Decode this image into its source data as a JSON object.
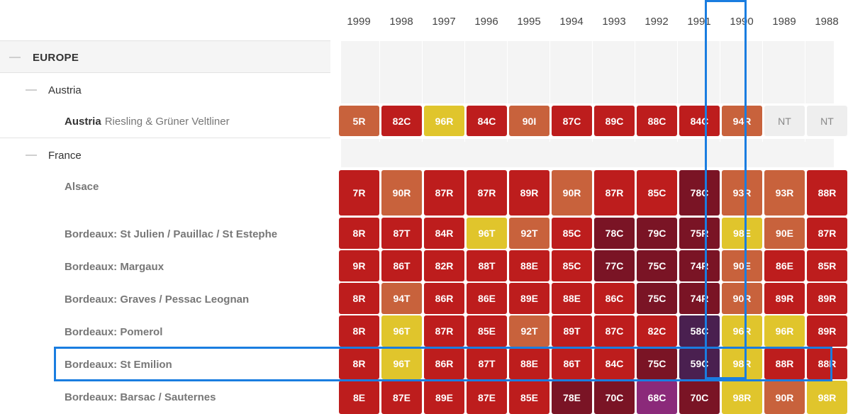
{
  "years": [
    "1999",
    "1998",
    "1997",
    "1996",
    "1995",
    "1994",
    "1993",
    "1992",
    "1991",
    "1990",
    "1989",
    "1988"
  ],
  "highlight": {
    "column_year": "1990",
    "row_label": "Bordeaux: St Emilion",
    "color": "#1a7de0"
  },
  "region": {
    "label": "EUROPE"
  },
  "countries": [
    {
      "label": "Austria"
    },
    {
      "label": "France"
    }
  ],
  "rows": [
    {
      "name": "Austria",
      "sub": "Riesling & Grüner Veltliner",
      "cells": [
        [
          "5R",
          "#c8623c"
        ],
        [
          "82C",
          "#bd1d1d"
        ],
        [
          "96R",
          "#e0c52c"
        ],
        [
          "84C",
          "#bd1d1d"
        ],
        [
          "90I",
          "#c8623c"
        ],
        [
          "87C",
          "#bd1d1d"
        ],
        [
          "89C",
          "#bd1d1d"
        ],
        [
          "88C",
          "#bd1d1d"
        ],
        [
          "84C",
          "#bd1d1d"
        ],
        [
          "94R",
          "#c8623c"
        ],
        [
          "NT",
          "#eeeeee"
        ],
        [
          "NT",
          "#eeeeee"
        ]
      ]
    },
    {
      "name": "Alsace",
      "sub": "",
      "cells": [
        [
          "7R",
          "#bd1d1d"
        ],
        [
          "90R",
          "#c8623c"
        ],
        [
          "87R",
          "#bd1d1d"
        ],
        [
          "87R",
          "#bd1d1d"
        ],
        [
          "89R",
          "#bd1d1d"
        ],
        [
          "90R",
          "#c8623c"
        ],
        [
          "87R",
          "#bd1d1d"
        ],
        [
          "85C",
          "#bd1d1d"
        ],
        [
          "78C",
          "#7a1425"
        ],
        [
          "93R",
          "#c8623c"
        ],
        [
          "93R",
          "#c8623c"
        ],
        [
          "88R",
          "#bd1d1d"
        ]
      ]
    },
    {
      "name": "Bordeaux: St Julien / Pauillac / St Estephe",
      "sub": "",
      "cells": [
        [
          "8R",
          "#bd1d1d"
        ],
        [
          "87T",
          "#bd1d1d"
        ],
        [
          "84R",
          "#bd1d1d"
        ],
        [
          "96T",
          "#e0c52c"
        ],
        [
          "92T",
          "#c8623c"
        ],
        [
          "85C",
          "#bd1d1d"
        ],
        [
          "78C",
          "#7a1425"
        ],
        [
          "79C",
          "#7a1425"
        ],
        [
          "75R",
          "#7a1425"
        ],
        [
          "98E",
          "#e0c52c"
        ],
        [
          "90E",
          "#c8623c"
        ],
        [
          "87R",
          "#bd1d1d"
        ]
      ]
    },
    {
      "name": "Bordeaux: Margaux",
      "sub": "",
      "cells": [
        [
          "9R",
          "#bd1d1d"
        ],
        [
          "86T",
          "#bd1d1d"
        ],
        [
          "82R",
          "#bd1d1d"
        ],
        [
          "88T",
          "#bd1d1d"
        ],
        [
          "88E",
          "#bd1d1d"
        ],
        [
          "85C",
          "#bd1d1d"
        ],
        [
          "77C",
          "#7a1425"
        ],
        [
          "75C",
          "#7a1425"
        ],
        [
          "74R",
          "#7a1425"
        ],
        [
          "90E",
          "#c8623c"
        ],
        [
          "86E",
          "#bd1d1d"
        ],
        [
          "85R",
          "#bd1d1d"
        ]
      ]
    },
    {
      "name": "Bordeaux: Graves / Pessac Leognan",
      "sub": "",
      "cells": [
        [
          "8R",
          "#bd1d1d"
        ],
        [
          "94T",
          "#c8623c"
        ],
        [
          "86R",
          "#bd1d1d"
        ],
        [
          "86E",
          "#bd1d1d"
        ],
        [
          "89E",
          "#bd1d1d"
        ],
        [
          "88E",
          "#bd1d1d"
        ],
        [
          "86C",
          "#bd1d1d"
        ],
        [
          "75C",
          "#7a1425"
        ],
        [
          "74R",
          "#7a1425"
        ],
        [
          "90R",
          "#c8623c"
        ],
        [
          "89R",
          "#bd1d1d"
        ],
        [
          "89R",
          "#bd1d1d"
        ]
      ]
    },
    {
      "name": "Bordeaux: Pomerol",
      "sub": "",
      "cells": [
        [
          "8R",
          "#bd1d1d"
        ],
        [
          "96T",
          "#e0c52c"
        ],
        [
          "87R",
          "#bd1d1d"
        ],
        [
          "85E",
          "#bd1d1d"
        ],
        [
          "92T",
          "#c8623c"
        ],
        [
          "89T",
          "#bd1d1d"
        ],
        [
          "87C",
          "#bd1d1d"
        ],
        [
          "82C",
          "#bd1d1d"
        ],
        [
          "58C",
          "#4a2050"
        ],
        [
          "96R",
          "#e0c52c"
        ],
        [
          "96R",
          "#e0c52c"
        ],
        [
          "89R",
          "#bd1d1d"
        ]
      ]
    },
    {
      "name": "Bordeaux: St Emilion",
      "sub": "",
      "cells": [
        [
          "8R",
          "#bd1d1d"
        ],
        [
          "96T",
          "#e0c52c"
        ],
        [
          "86R",
          "#bd1d1d"
        ],
        [
          "87T",
          "#bd1d1d"
        ],
        [
          "88E",
          "#bd1d1d"
        ],
        [
          "86T",
          "#bd1d1d"
        ],
        [
          "84C",
          "#bd1d1d"
        ],
        [
          "75C",
          "#7a1425"
        ],
        [
          "59C",
          "#4a2050"
        ],
        [
          "98R",
          "#e0c52c"
        ],
        [
          "88R",
          "#bd1d1d"
        ],
        [
          "88R",
          "#bd1d1d"
        ]
      ]
    },
    {
      "name": "Bordeaux: Barsac / Sauternes",
      "sub": "",
      "cells": [
        [
          "8E",
          "#bd1d1d"
        ],
        [
          "87E",
          "#bd1d1d"
        ],
        [
          "89E",
          "#bd1d1d"
        ],
        [
          "87E",
          "#bd1d1d"
        ],
        [
          "85E",
          "#bd1d1d"
        ],
        [
          "78E",
          "#7a1425"
        ],
        [
          "70C",
          "#7a1425"
        ],
        [
          "68C",
          "#8b2a7a"
        ],
        [
          "70C",
          "#7a1425"
        ],
        [
          "98R",
          "#e0c52c"
        ],
        [
          "90R",
          "#c8623c"
        ],
        [
          "98R",
          "#e0c52c"
        ]
      ]
    }
  ]
}
